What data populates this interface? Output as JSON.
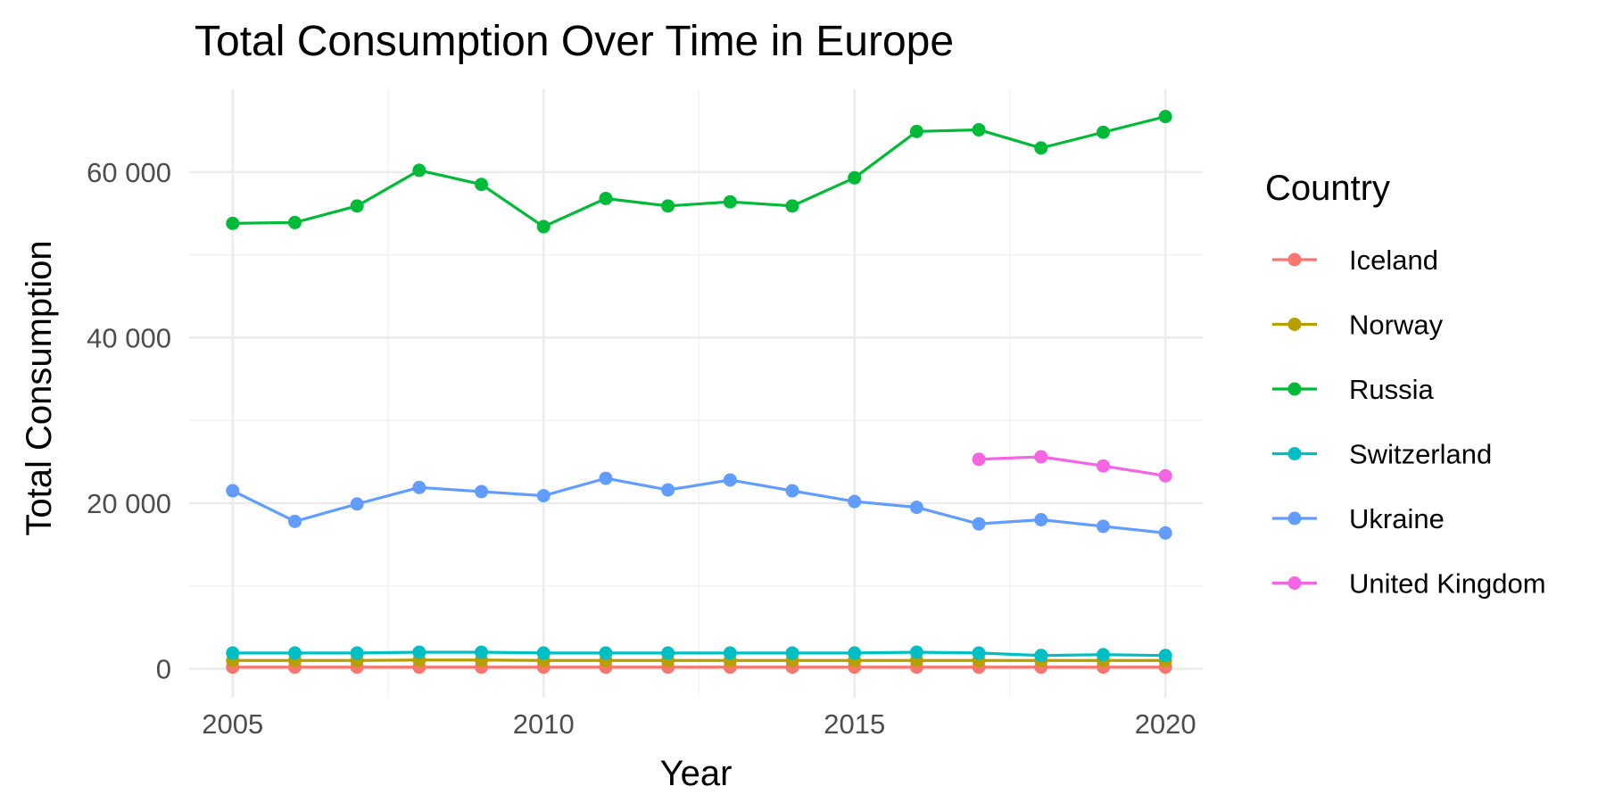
{
  "chart_data": {
    "type": "line",
    "title": "Total Consumption Over Time in Europe",
    "xlabel": "Year",
    "ylabel": "Total Consumption",
    "xlim": [
      2004.3,
      2020.6
    ],
    "ylim": [
      -3500,
      70000
    ],
    "x_ticks": [
      2005,
      2010,
      2015,
      2020
    ],
    "x_tick_labels": [
      "2005",
      "2010",
      "2015",
      "2020"
    ],
    "y_ticks": [
      0,
      20000,
      40000,
      60000
    ],
    "y_tick_labels": [
      "0",
      "20 000",
      "40 000",
      "60 000"
    ],
    "grid": true,
    "legend": {
      "title": "Country",
      "position": "right"
    },
    "series": [
      {
        "name": "Iceland",
        "color": "#F8766D",
        "x": [
          2005,
          2006,
          2007,
          2008,
          2009,
          2010,
          2011,
          2012,
          2013,
          2014,
          2015,
          2016,
          2017,
          2018,
          2019,
          2020
        ],
        "values": [
          200,
          200,
          200,
          200,
          200,
          200,
          200,
          200,
          200,
          200,
          200,
          200,
          200,
          200,
          200,
          200
        ]
      },
      {
        "name": "Norway",
        "color": "#B79F00",
        "x": [
          2005,
          2006,
          2007,
          2008,
          2009,
          2010,
          2011,
          2012,
          2013,
          2014,
          2015,
          2016,
          2017,
          2018,
          2019,
          2020
        ],
        "values": [
          1000,
          1000,
          1000,
          1050,
          1050,
          1000,
          1000,
          1000,
          1000,
          1000,
          1000,
          1000,
          1000,
          1000,
          1000,
          1000
        ]
      },
      {
        "name": "Russia",
        "color": "#00BA38",
        "x": [
          2005,
          2006,
          2007,
          2008,
          2009,
          2010,
          2011,
          2012,
          2013,
          2014,
          2015,
          2016,
          2017,
          2018,
          2019,
          2020
        ],
        "values": [
          53800,
          53900,
          55900,
          60200,
          58500,
          53400,
          56800,
          55900,
          56400,
          55900,
          59300,
          64900,
          65100,
          62900,
          64800,
          66700
        ]
      },
      {
        "name": "Switzerland",
        "color": "#00BFC4",
        "x": [
          2005,
          2006,
          2007,
          2008,
          2009,
          2010,
          2011,
          2012,
          2013,
          2014,
          2015,
          2016,
          2017,
          2018,
          2019,
          2020
        ],
        "values": [
          1900,
          1900,
          1900,
          2000,
          2000,
          1900,
          1900,
          1900,
          1900,
          1900,
          1900,
          2000,
          1900,
          1600,
          1700,
          1600
        ]
      },
      {
        "name": "Ukraine",
        "color": "#619CFF",
        "x": [
          2005,
          2006,
          2007,
          2008,
          2009,
          2010,
          2011,
          2012,
          2013,
          2014,
          2015,
          2016,
          2017,
          2018,
          2019,
          2020
        ],
        "values": [
          21500,
          17800,
          19900,
          21900,
          21400,
          20900,
          23000,
          21600,
          22800,
          21500,
          20200,
          19500,
          17500,
          18000,
          17200,
          16400
        ]
      },
      {
        "name": "United Kingdom",
        "color": "#F564E3",
        "x": [
          2017,
          2018,
          2019,
          2020
        ],
        "values": [
          25300,
          25600,
          24500,
          23300
        ]
      }
    ]
  }
}
